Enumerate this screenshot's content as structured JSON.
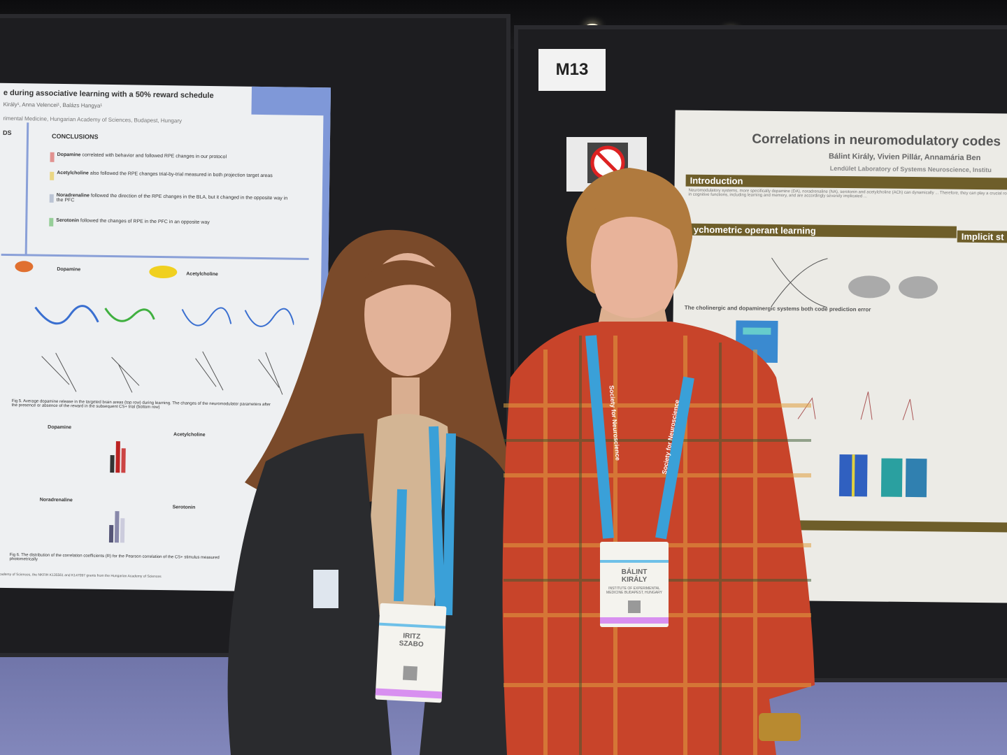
{
  "sign": {
    "booth_number": "M13"
  },
  "poster_left": {
    "title": "e during associative learning with a 50% reward schedule",
    "authors": "Király¹, Anna Velencei¹, Balázs Hangya¹",
    "affiliation": "rimental Medicine, Hungarian Academy of Sciences, Budapest, Hungary",
    "side_heading": "DS",
    "conclusions_heading": "CONCLUSIONS",
    "conclusions": [
      {
        "term": "Dopamine",
        "text": "correlated with behavior and followed RPE changes in our protocol",
        "color": "#d9534f"
      },
      {
        "term": "Acetylcholine",
        "text": "also followed the RPE changes trial-by-trial measured in both projection target areas",
        "color": "#e8c43a"
      },
      {
        "term": "Noradrenaline",
        "text": "followed the direction of the RPE changes in the BLA, but it changed in the opposite way in the PFC",
        "color": "#9aa7c0"
      },
      {
        "term": "Serotonin",
        "text": "followed the changes of RPE in the PFC in an opposite way",
        "color": "#5cb85c"
      }
    ],
    "panel_labels": [
      "Dopamine",
      "Acetylcholine",
      "Noradrenaline",
      "Serotonin"
    ],
    "fig5_caption": "Fig 5. Average dopamine release in the targeted brain areas (top row) during learning. The changes of the neuromodulator parameters after the presence or absence of the reward in the subsequent CS+ trial (bottom row)",
    "fig6_caption": "Fig 6. The distribution of the correlation coefficients (R) for the Pearson correlation of the CS+ stimulus measured photometrically",
    "footer": "Academy of Sciences, the NKFIH K135561 and K147097 grants from the Hungarian Academy of Sciences"
  },
  "poster_right": {
    "title": "Correlations in neuromodulatory codes",
    "authors": "Bálint Király, Vivien Pillár, Annamária Ben",
    "affiliation": "Lendület Laboratory of Systems Neuroscience, Institu",
    "sections": [
      "Introduction",
      "ychometric operant learning",
      "Implicit st"
    ],
    "subheading": "The cholinergic and dopaminergic systems both code prediction error",
    "intro_text": "Neuromodulatory systems, more specifically dopamine (DA), noradrenaline (NA), serotonin and acetylcholine (ACh) can dynamically ... Therefore, they can play a crucial role in cognitive functions, including learning and memory, and are accordingly severely implicated ...",
    "colors": {
      "section_header": "#6e5e2a"
    }
  },
  "people": {
    "left_badge": {
      "first_name": "IRITZ",
      "last_name": "SZABO"
    },
    "right_badge": {
      "first_name": "BÁLINT",
      "last_name": "KIRÁLY",
      "institute": "INSTITUTE OF EXPERIMENTAL MEDICINE BUDAPEST, HUNGARY"
    },
    "lanyard_text": "Society for Neuroscience",
    "colors": {
      "lanyard": "#3aa0d8",
      "shirt": "#c8442a",
      "cardigan": "#2a2b2e",
      "hair_left": "#7a4a2a",
      "hair_right": "#b07a3e"
    }
  }
}
